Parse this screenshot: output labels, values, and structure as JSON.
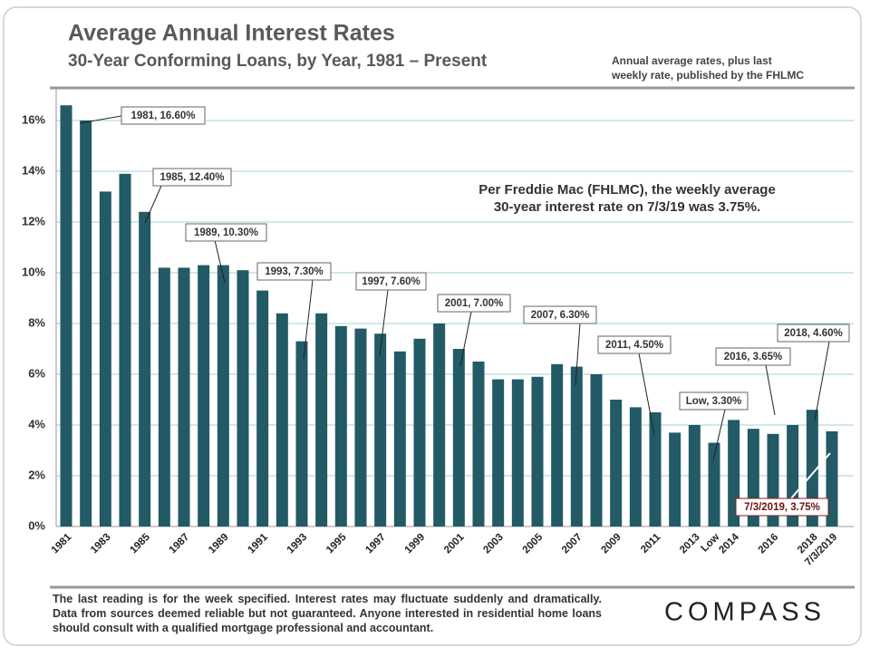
{
  "chart_data": {
    "type": "bar",
    "title": "Average Annual Interest Rates",
    "subtitle": "30-Year Conforming Loans, by Year, 1981 – Present",
    "source_note": [
      "Annual average rates, plus last",
      "weekly rate, published by the FHLMC"
    ],
    "annotation": [
      "Per Freddie Mac (FHLMC), the weekly average",
      "30-year interest rate on 7/3/19 was 3.75%."
    ],
    "footnote": "The last reading is for the week specified. Interest rates may fluctuate suddenly and dramatically. Data from sources deemed reliable but not guaranteed. Anyone interested in residential home loans should consult with a qualified mortgage professional and accountant.",
    "logo": "COMPASS",
    "categories": [
      "1981",
      null,
      "1983",
      null,
      "1985",
      null,
      "1987",
      null,
      "1989",
      null,
      "1991",
      null,
      "1993",
      null,
      "1995",
      null,
      "1997",
      null,
      "1999",
      null,
      "2001",
      null,
      "2003",
      null,
      "2005",
      null,
      "2007",
      null,
      "2009",
      null,
      "2011",
      null,
      "2013",
      "Low",
      "2014",
      null,
      "2016",
      null,
      "2018",
      "7/3/2019"
    ],
    "values": [
      16.6,
      16.0,
      13.2,
      13.9,
      12.4,
      10.2,
      10.2,
      10.3,
      10.3,
      10.1,
      9.3,
      8.4,
      7.3,
      8.4,
      7.9,
      7.8,
      7.6,
      6.9,
      7.4,
      8.0,
      7.0,
      6.5,
      5.8,
      5.8,
      5.9,
      6.4,
      6.3,
      6.0,
      5.0,
      4.7,
      4.5,
      3.7,
      4.0,
      3.3,
      4.2,
      3.85,
      3.65,
      4.0,
      4.6,
      3.75
    ],
    "value_labels": [
      "1981, 16.60%",
      null,
      null,
      null,
      "1985, 12.40%",
      null,
      null,
      null,
      "1989, 10.30%",
      null,
      null,
      null,
      "1993, 7.30%",
      null,
      null,
      null,
      "1997, 7.60%",
      null,
      null,
      null,
      "2001, 7.00%",
      null,
      null,
      null,
      null,
      null,
      "2007, 6.30%",
      null,
      null,
      null,
      "2011, 4.50%",
      null,
      null,
      "Low, 3.30%",
      null,
      null,
      "2016, 3.65%",
      null,
      "2018, 4.60%",
      "7/3/2019, 3.75%"
    ],
    "color": "#225a66",
    "ylim": [
      0,
      17.25
    ],
    "yticks": [
      {
        "value": 0,
        "label": "0%"
      },
      {
        "value": 2,
        "label": "2%"
      },
      {
        "value": 4,
        "label": "4%"
      },
      {
        "value": 6,
        "label": "6%"
      },
      {
        "value": 8,
        "label": "8%"
      },
      {
        "value": 10,
        "label": "10%"
      },
      {
        "value": 12,
        "label": "12%"
      },
      {
        "value": 14,
        "label": "14%"
      },
      {
        "value": 16,
        "label": "16%"
      }
    ],
    "grid": true
  }
}
